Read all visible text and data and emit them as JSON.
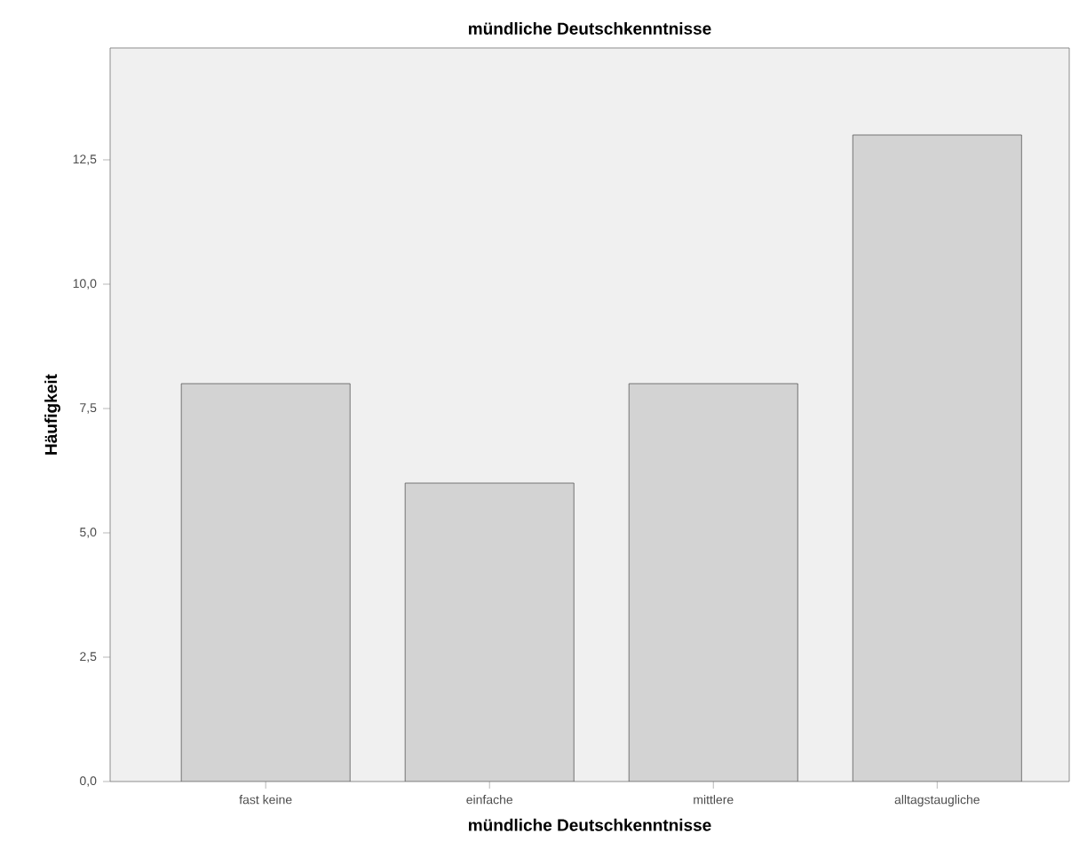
{
  "chart_data": {
    "type": "bar",
    "title": "mündliche Deutschkenntnisse",
    "xlabel": "mündliche Deutschkenntnisse",
    "ylabel": "Häufigkeit",
    "categories": [
      "fast keine",
      "einfache",
      "mittlere",
      "alltagstaugliche"
    ],
    "values": [
      8,
      6,
      8,
      13
    ],
    "color": "#d3d3d3",
    "ylim": [
      0,
      14.75
    ],
    "yticks": [
      {
        "value": 0,
        "label": "0,0"
      },
      {
        "value": 2.5,
        "label": "2,5"
      },
      {
        "value": 5,
        "label": "5,0"
      },
      {
        "value": 7.5,
        "label": "7,5"
      },
      {
        "value": 10,
        "label": "10,0"
      },
      {
        "value": 12.5,
        "label": "12,5"
      }
    ],
    "grid": false
  }
}
